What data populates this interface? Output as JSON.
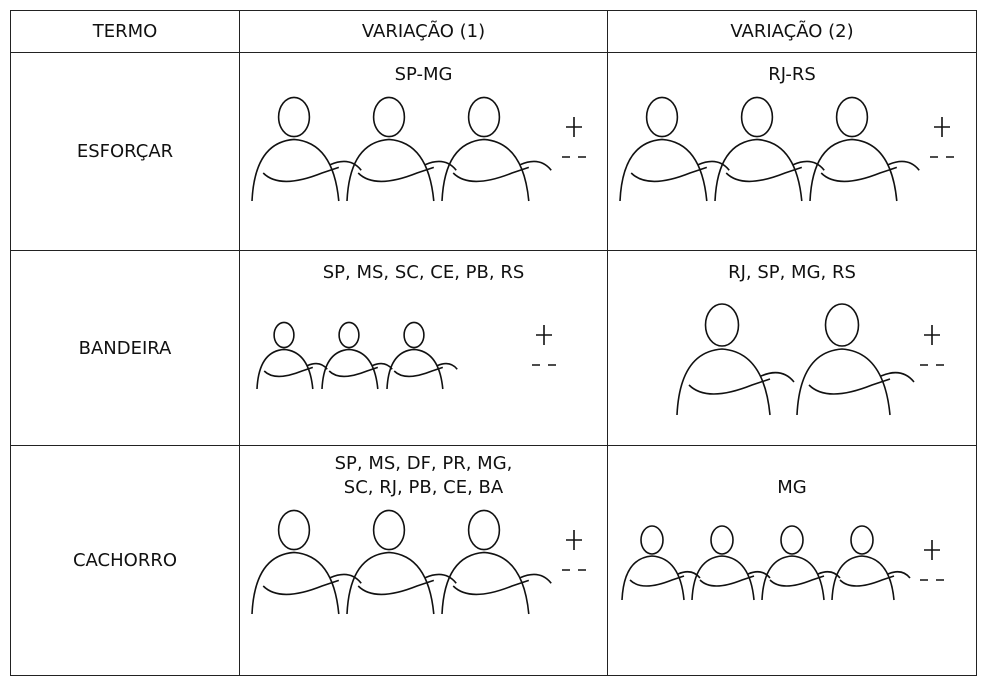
{
  "table": {
    "header": [
      "TERMO",
      "VARIAÇÃO (1)",
      "VARIAÇÃO (2)"
    ],
    "rows": [
      [
        "ESFORÇAR",
        "SP-MG",
        "RJ-RS"
      ],
      [
        "BANDEIRA",
        "SP, MS, SC, CE, PB, RS",
        "RJ, SP, MG, RS"
      ],
      [
        "CACHORRO",
        [
          "SP, MS, DF, PR, MG,",
          "SC, RJ, PB, CE, BA"
        ],
        "MG"
      ]
    ]
  }
}
